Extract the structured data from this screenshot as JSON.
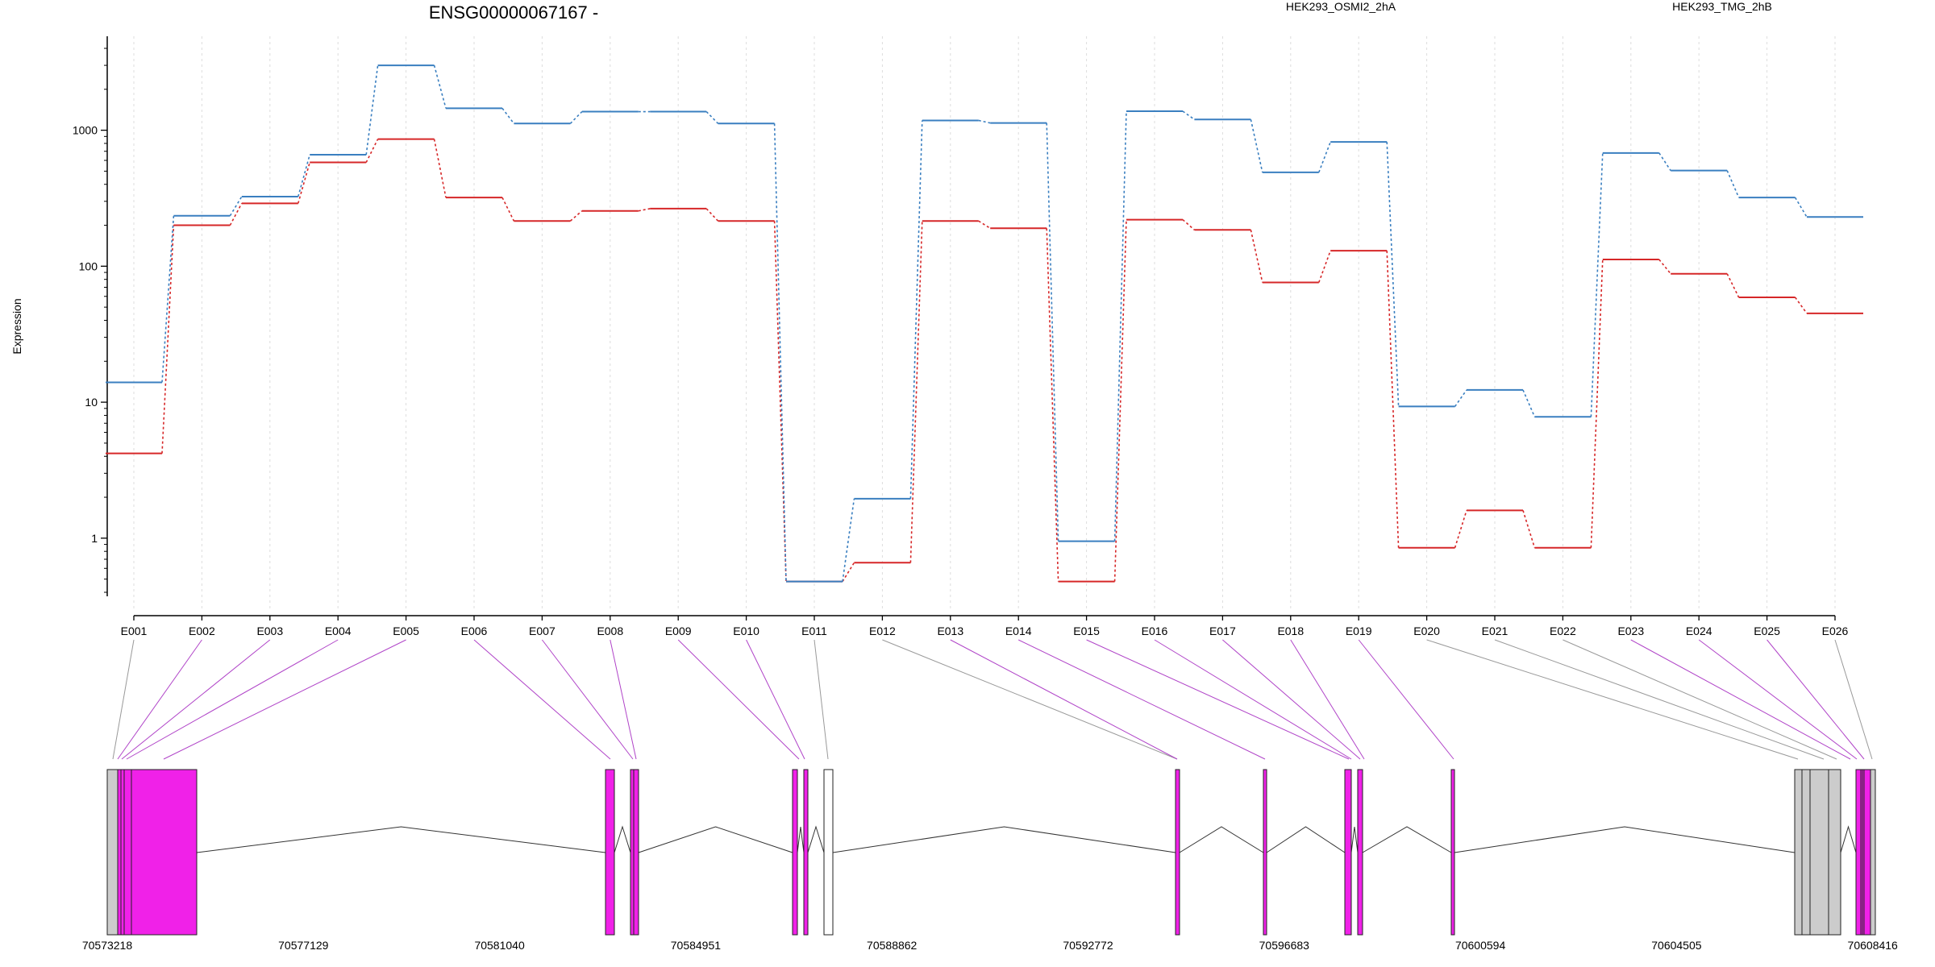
{
  "chart_data": {
    "type": "line",
    "title": "ENSG00000067167 -",
    "ylabel": "Expression",
    "xlabel": "",
    "yscale": "log",
    "ylim": [
      0.4,
      4000
    ],
    "yticks": [
      "1",
      "10",
      "100",
      "1000"
    ],
    "grid": "vertical dotted lines at each exon",
    "legend_position": "top",
    "categories": [
      "E001",
      "E002",
      "E003",
      "E004",
      "E005",
      "E006",
      "E007",
      "E008",
      "E009",
      "E010",
      "E011",
      "E012",
      "E013",
      "E014",
      "E015",
      "E016",
      "E017",
      "E018",
      "E019",
      "E020",
      "E021",
      "E022",
      "E023",
      "E024",
      "E025",
      "E026"
    ],
    "series": [
      {
        "name": "HEK293_OSMI2_2hA",
        "color": "#d62728",
        "values": [
          4.2,
          200,
          290,
          580,
          860,
          320,
          215,
          255,
          265,
          215,
          0.48,
          0.66,
          215,
          190,
          0.48,
          220,
          185,
          76,
          130,
          0.85,
          1.6,
          0.85,
          112,
          88,
          59,
          45
        ]
      },
      {
        "name": "HEK293_TMG_2hB",
        "color": "#3a7fc0",
        "values": [
          14,
          235,
          325,
          660,
          3000,
          1450,
          1120,
          1370,
          1370,
          1120,
          0.48,
          1.95,
          1180,
          1130,
          0.95,
          1380,
          1200,
          490,
          820,
          9.3,
          12.3,
          7.8,
          680,
          505,
          320,
          230
        ]
      }
    ],
    "gene_model": {
      "coordinate_labels": [
        "70573218",
        "70577129",
        "70581040",
        "70584951",
        "70588862",
        "70592772",
        "70596683",
        "70600594",
        "70604505",
        "70608416"
      ],
      "line_colors": {
        "tested": "#b044c8",
        "untested": "#999999"
      }
    }
  },
  "colors": {
    "exon_tested": "#f021e8",
    "exon_untested": "#cccccc",
    "exon_empty": "#ffffff",
    "grid": "#dddddd"
  }
}
